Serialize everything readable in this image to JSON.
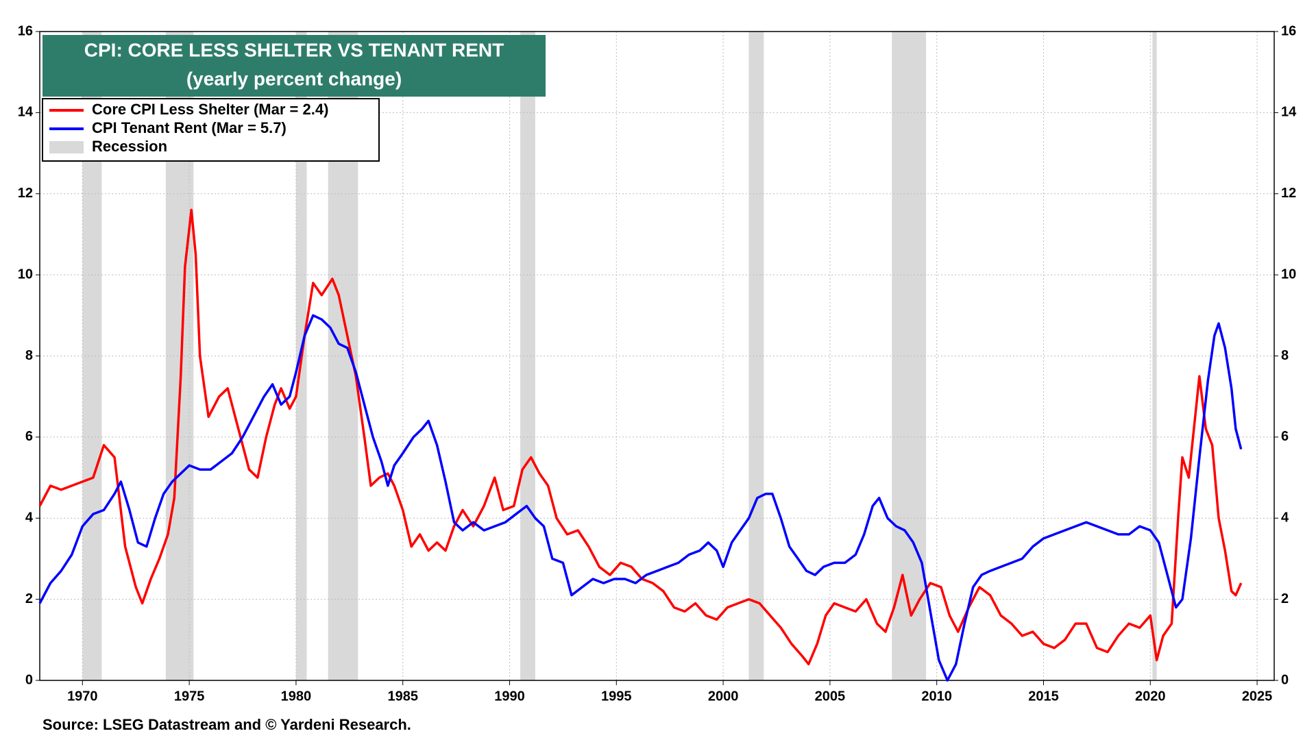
{
  "chart_data": {
    "type": "line",
    "title": "CPI: CORE LESS SHELTER VS TENANT RENT",
    "subtitle": "(yearly percent change)",
    "source": "Source: LSEG Datastream and © Yardeni Research.",
    "xlim": [
      1968,
      2025.8
    ],
    "xticks": [
      1970,
      1975,
      1980,
      1985,
      1990,
      1995,
      2000,
      2005,
      2010,
      2015,
      2020,
      2025
    ],
    "ylim": [
      0,
      16
    ],
    "yticks": [
      0,
      2,
      4,
      6,
      8,
      10,
      12,
      14,
      16
    ],
    "y2lim": [
      0,
      16
    ],
    "y2ticks": [
      0,
      2,
      4,
      6,
      8,
      10,
      12,
      14,
      16
    ],
    "grid": true,
    "legend": "top-left",
    "recession_label": "Recession",
    "recession_color": "#d9d9d9",
    "recessions": [
      [
        1970.0,
        1970.9
      ],
      [
        1973.9,
        1975.2
      ],
      [
        1980.0,
        1980.5
      ],
      [
        1981.5,
        1982.9
      ],
      [
        1990.5,
        1991.2
      ],
      [
        2001.2,
        2001.9
      ],
      [
        2007.9,
        2009.5
      ],
      [
        2020.1,
        2020.3
      ]
    ],
    "series": [
      {
        "name": "Core CPI Less Shelter (Mar = 2.4)",
        "color": "#ff0000",
        "x": [
          1968.0,
          1968.5,
          1969.0,
          1969.5,
          1970.0,
          1970.5,
          1971.0,
          1971.5,
          1972.0,
          1972.5,
          1972.8,
          1973.2,
          1973.6,
          1974.0,
          1974.3,
          1974.6,
          1974.8,
          1975.1,
          1975.3,
          1975.5,
          1975.9,
          1976.4,
          1976.8,
          1977.3,
          1977.8,
          1978.2,
          1978.6,
          1979.0,
          1979.3,
          1979.7,
          1980.0,
          1980.4,
          1980.8,
          1981.2,
          1981.7,
          1982.0,
          1982.4,
          1982.8,
          1983.2,
          1983.5,
          1983.9,
          1984.3,
          1984.6,
          1985.0,
          1985.4,
          1985.8,
          1986.2,
          1986.6,
          1987.0,
          1987.4,
          1987.8,
          1988.3,
          1988.8,
          1989.3,
          1989.7,
          1990.2,
          1990.6,
          1991.0,
          1991.4,
          1991.8,
          1992.2,
          1992.7,
          1993.2,
          1993.7,
          1994.2,
          1994.7,
          1995.2,
          1995.7,
          1996.2,
          1996.7,
          1997.2,
          1997.7,
          1998.2,
          1998.7,
          1999.2,
          1999.7,
          2000.2,
          2000.7,
          2001.2,
          2001.7,
          2002.2,
          2002.7,
          2003.2,
          2003.7,
          2004.0,
          2004.4,
          2004.8,
          2005.2,
          2005.7,
          2006.2,
          2006.7,
          2007.2,
          2007.6,
          2008.0,
          2008.4,
          2008.8,
          2009.2,
          2009.7,
          2010.2,
          2010.6,
          2011.0,
          2011.5,
          2012.0,
          2012.5,
          2013.0,
          2013.5,
          2014.0,
          2014.5,
          2015.0,
          2015.5,
          2016.0,
          2016.5,
          2017.0,
          2017.5,
          2018.0,
          2018.5,
          2019.0,
          2019.5,
          2020.0,
          2020.3,
          2020.6,
          2021.0,
          2021.3,
          2021.5,
          2021.8,
          2022.1,
          2022.3,
          2022.6,
          2022.9,
          2023.2,
          2023.5,
          2023.8,
          2024.0,
          2024.25
        ],
        "values": [
          4.3,
          4.8,
          4.7,
          4.8,
          4.9,
          5.0,
          5.8,
          5.5,
          3.3,
          2.3,
          1.9,
          2.5,
          3.0,
          3.6,
          4.5,
          7.5,
          10.2,
          11.6,
          10.5,
          8.0,
          6.5,
          7.0,
          7.2,
          6.2,
          5.2,
          5.0,
          6.0,
          6.8,
          7.2,
          6.7,
          7.0,
          8.5,
          9.8,
          9.5,
          9.9,
          9.5,
          8.5,
          7.5,
          6.0,
          4.8,
          5.0,
          5.1,
          4.8,
          4.2,
          3.3,
          3.6,
          3.2,
          3.4,
          3.2,
          3.8,
          4.2,
          3.8,
          4.3,
          5.0,
          4.2,
          4.3,
          5.2,
          5.5,
          5.1,
          4.8,
          4.0,
          3.6,
          3.7,
          3.3,
          2.8,
          2.6,
          2.9,
          2.8,
          2.5,
          2.4,
          2.2,
          1.8,
          1.7,
          1.9,
          1.6,
          1.5,
          1.8,
          1.9,
          2.0,
          1.9,
          1.6,
          1.3,
          0.9,
          0.6,
          0.4,
          0.9,
          1.6,
          1.9,
          1.8,
          1.7,
          2.0,
          1.4,
          1.2,
          1.8,
          2.6,
          1.6,
          2.0,
          2.4,
          2.3,
          1.6,
          1.2,
          1.8,
          2.3,
          2.1,
          1.6,
          1.4,
          1.1,
          1.2,
          0.9,
          0.8,
          1.0,
          1.4,
          1.4,
          0.8,
          0.7,
          1.1,
          1.4,
          1.3,
          1.6,
          0.5,
          1.1,
          1.4,
          4.0,
          5.5,
          5.0,
          6.5,
          7.5,
          6.2,
          5.8,
          4.0,
          3.2,
          2.2,
          2.1,
          2.4
        ]
      },
      {
        "name": "CPI Tenant Rent (Mar = 5.7)",
        "color": "#0000ff",
        "x": [
          1968.0,
          1968.5,
          1969.0,
          1969.5,
          1970.0,
          1970.5,
          1971.0,
          1971.5,
          1971.8,
          1972.2,
          1972.6,
          1973.0,
          1973.4,
          1973.8,
          1974.2,
          1974.6,
          1975.0,
          1975.5,
          1976.0,
          1976.5,
          1977.0,
          1977.5,
          1978.0,
          1978.5,
          1978.9,
          1979.3,
          1979.7,
          1980.0,
          1980.4,
          1980.8,
          1981.2,
          1981.6,
          1982.0,
          1982.4,
          1982.8,
          1983.2,
          1983.6,
          1984.0,
          1984.3,
          1984.6,
          1985.0,
          1985.5,
          1985.9,
          1986.2,
          1986.6,
          1987.0,
          1987.4,
          1987.8,
          1988.3,
          1988.8,
          1989.3,
          1989.8,
          1990.3,
          1990.8,
          1991.2,
          1991.6,
          1992.0,
          1992.5,
          1992.9,
          1993.4,
          1993.9,
          1994.4,
          1994.9,
          1995.4,
          1995.9,
          1996.4,
          1996.9,
          1997.4,
          1997.9,
          1998.4,
          1998.9,
          1999.3,
          1999.7,
          2000.0,
          2000.4,
          2000.8,
          2001.2,
          2001.6,
          2002.0,
          2002.3,
          2002.7,
          2003.1,
          2003.5,
          2003.9,
          2004.3,
          2004.7,
          2005.2,
          2005.7,
          2006.2,
          2006.6,
          2007.0,
          2007.3,
          2007.7,
          2008.1,
          2008.5,
          2008.9,
          2009.3,
          2009.7,
          2010.1,
          2010.5,
          2010.9,
          2011.3,
          2011.7,
          2012.1,
          2012.5,
          2013.0,
          2013.5,
          2014.0,
          2014.5,
          2015.0,
          2015.5,
          2016.0,
          2016.5,
          2017.0,
          2017.5,
          2018.0,
          2018.5,
          2019.0,
          2019.5,
          2020.0,
          2020.4,
          2020.8,
          2021.2,
          2021.5,
          2021.9,
          2022.3,
          2022.7,
          2023.0,
          2023.2,
          2023.5,
          2023.8,
          2024.0,
          2024.25
        ],
        "values": [
          1.9,
          2.4,
          2.7,
          3.1,
          3.8,
          4.1,
          4.2,
          4.6,
          4.9,
          4.2,
          3.4,
          3.3,
          4.0,
          4.6,
          4.9,
          5.1,
          5.3,
          5.2,
          5.2,
          5.4,
          5.6,
          6.0,
          6.5,
          7.0,
          7.3,
          6.8,
          7.0,
          7.6,
          8.5,
          9.0,
          8.9,
          8.7,
          8.3,
          8.2,
          7.6,
          6.8,
          6.0,
          5.4,
          4.8,
          5.3,
          5.6,
          6.0,
          6.2,
          6.4,
          5.8,
          4.9,
          3.9,
          3.7,
          3.9,
          3.7,
          3.8,
          3.9,
          4.1,
          4.3,
          4.0,
          3.8,
          3.0,
          2.9,
          2.1,
          2.3,
          2.5,
          2.4,
          2.5,
          2.5,
          2.4,
          2.6,
          2.7,
          2.8,
          2.9,
          3.1,
          3.2,
          3.4,
          3.2,
          2.8,
          3.4,
          3.7,
          4.0,
          4.5,
          4.6,
          4.6,
          4.0,
          3.3,
          3.0,
          2.7,
          2.6,
          2.8,
          2.9,
          2.9,
          3.1,
          3.6,
          4.3,
          4.5,
          4.0,
          3.8,
          3.7,
          3.4,
          2.9,
          1.7,
          0.5,
          0.0,
          0.4,
          1.4,
          2.3,
          2.6,
          2.7,
          2.8,
          2.9,
          3.0,
          3.3,
          3.5,
          3.6,
          3.7,
          3.8,
          3.9,
          3.8,
          3.7,
          3.6,
          3.6,
          3.8,
          3.7,
          3.4,
          2.6,
          1.8,
          2.0,
          3.5,
          5.5,
          7.4,
          8.5,
          8.8,
          8.2,
          7.2,
          6.2,
          5.7
        ]
      }
    ]
  }
}
